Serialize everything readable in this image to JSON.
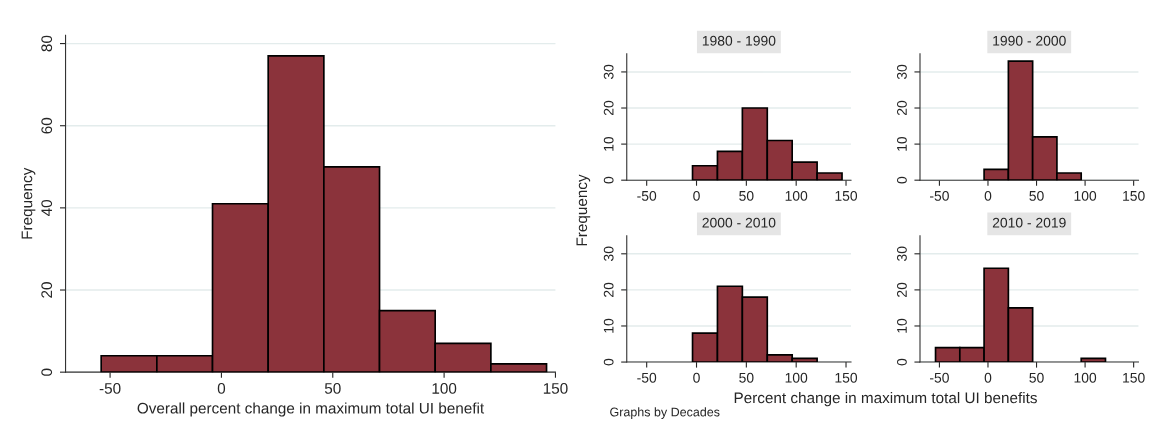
{
  "chart_data": [
    {
      "type": "histogram",
      "bins": [
        -54,
        -29,
        -4,
        21,
        46,
        71,
        96,
        121,
        146
      ],
      "values": [
        4,
        4,
        41,
        77,
        50,
        15,
        7,
        2
      ],
      "color": "#8b333b",
      "xlim": [
        -70,
        150
      ],
      "ylim": [
        0,
        82
      ],
      "xticks": [
        -50,
        0,
        50,
        100,
        150
      ],
      "yticks": [
        0,
        20,
        40,
        60,
        80
      ],
      "grid": "y",
      "xlabel": "Overall percent change in maximum total UI benefit",
      "ylabel": "Frequency"
    },
    {
      "type": "histogram",
      "title": "1980 - 1990",
      "bins": [
        -4,
        21,
        46,
        71,
        96,
        121,
        146
      ],
      "values": [
        4,
        8,
        20,
        11,
        5,
        2
      ],
      "color": "#8b333b",
      "xlim": [
        -70,
        155
      ],
      "ylim": [
        0,
        35
      ],
      "xticks": [
        -50,
        0,
        50,
        100,
        150
      ],
      "yticks": [
        0,
        10,
        20,
        30
      ],
      "grid": "y",
      "ylabel": "Frequency"
    },
    {
      "type": "histogram",
      "title": "2000 - 2010",
      "bins": [
        -4,
        21,
        46,
        71,
        96,
        121
      ],
      "values": [
        8,
        21,
        18,
        2,
        1
      ],
      "color": "#8b333b",
      "xlim": [
        -70,
        155
      ],
      "ylim": [
        0,
        35
      ],
      "xticks": [
        -50,
        0,
        50,
        100,
        150
      ],
      "yticks": [
        0,
        10,
        20,
        30
      ],
      "grid": "y",
      "xlabel": "Percent change in maximum total UI benefits",
      "annotations": [
        "Graphs by Decades"
      ]
    },
    {
      "type": "histogram",
      "title": "1990 - 2000",
      "bins": [
        -4,
        21,
        46,
        71,
        96
      ],
      "values": [
        3,
        33,
        12,
        2
      ],
      "color": "#8b333b",
      "xlim": [
        -70,
        155
      ],
      "ylim": [
        0,
        35
      ],
      "xticks": [
        -50,
        0,
        50,
        100,
        150
      ],
      "yticks": [
        0,
        10,
        20,
        30
      ],
      "grid": "y"
    },
    {
      "type": "histogram",
      "title": "2010 - 2019",
      "bins": [
        -54,
        -29,
        -4,
        21,
        46,
        71,
        96,
        121
      ],
      "values": [
        4,
        4,
        26,
        15,
        0,
        0,
        1
      ],
      "color": "#8b333b",
      "xlim": [
        -70,
        155
      ],
      "ylim": [
        0,
        35
      ],
      "xticks": [
        -50,
        0,
        50,
        100,
        150
      ],
      "yticks": [
        0,
        10,
        20,
        30
      ],
      "grid": "y"
    }
  ]
}
